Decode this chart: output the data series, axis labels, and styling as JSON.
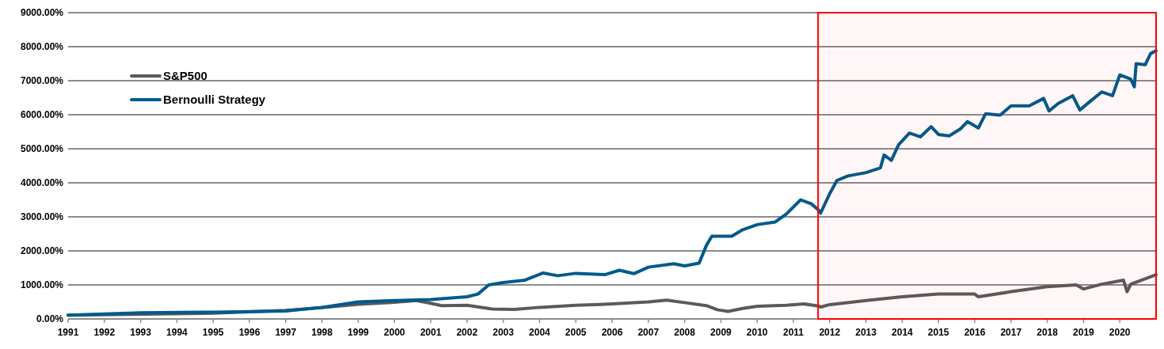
{
  "chart_data": {
    "type": "line",
    "xlim": [
      1991,
      2021
    ],
    "xticks": [
      1991,
      1992,
      1993,
      1994,
      1995,
      1996,
      1997,
      1998,
      1999,
      2000,
      2001,
      2002,
      2003,
      2004,
      2005,
      2006,
      2007,
      2008,
      2009,
      2010,
      2011,
      2012,
      2013,
      2014,
      2015,
      2016,
      2017,
      2018,
      2019,
      2020
    ],
    "ylim": [
      0,
      9000
    ],
    "yticks": [
      {
        "value": 0,
        "label": "0.00%"
      },
      {
        "value": 1000,
        "label": "1000.00%"
      },
      {
        "value": 2000,
        "label": "2000.00%"
      },
      {
        "value": 3000,
        "label": "3000.00%"
      },
      {
        "value": 4000,
        "label": "4000.00%"
      },
      {
        "value": 5000,
        "label": "5000.00%"
      },
      {
        "value": 6000,
        "label": "6000.00%"
      },
      {
        "value": 7000,
        "label": "7000.00%"
      },
      {
        "value": 8000,
        "label": "8000.00%"
      },
      {
        "value": 9000,
        "label": "9000.00%"
      }
    ],
    "grid": "y",
    "legend": "top left",
    "marker": "none",
    "line_style": "solid",
    "bands": [
      {
        "axis": "x",
        "from": 2011.68,
        "to": 2021,
        "color": "#ff0000"
      }
    ],
    "series": [
      {
        "name": "S&P500",
        "color": "#5a5a5a",
        "x": [
          1991,
          1995,
          1997,
          1998,
          1999,
          2000,
          2000.6,
          2001,
          2001.3,
          2002,
          2002.7,
          2003.3,
          2004,
          2005,
          2006,
          2007,
          2007.5,
          2008,
          2008.6,
          2008.9,
          2009.2,
          2009.6,
          2010,
          2010.8,
          2011.3,
          2011.7,
          2011.75,
          2012,
          2013,
          2014,
          2015,
          2016,
          2016.1,
          2017,
          2018,
          2018.8,
          2019,
          2019.5,
          2020.1,
          2020.2,
          2020.3,
          2021
        ],
        "values": [
          110,
          170,
          250,
          330,
          430,
          490,
          540,
          460,
          390,
          400,
          290,
          280,
          340,
          400,
          440,
          500,
          550,
          480,
          390,
          270,
          220,
          310,
          370,
          400,
          440,
          380,
          350,
          420,
          540,
          650,
          730,
          730,
          650,
          800,
          950,
          1000,
          880,
          1020,
          1140,
          800,
          1020,
          1300
        ]
      },
      {
        "name": "Bernoulli Strategy",
        "color": "#005a8c",
        "x": [
          1991,
          1993,
          1995,
          1997,
          1998,
          1999,
          2000,
          2001,
          2002,
          2002.3,
          2002.6,
          2003,
          2003.6,
          2004.1,
          2004.5,
          2005,
          2005.8,
          2006.2,
          2006.6,
          2007,
          2007.7,
          2008,
          2008.4,
          2008.6,
          2008.75,
          2009.3,
          2009.6,
          2010,
          2010.5,
          2010.8,
          2011.2,
          2011.5,
          2011.7,
          2011.75,
          2012,
          2012.2,
          2012.5,
          2013,
          2013.4,
          2013.5,
          2013.7,
          2013.9,
          2014.2,
          2014.5,
          2014.8,
          2015,
          2015.3,
          2015.6,
          2015.8,
          2016.1,
          2016.3,
          2016.7,
          2017,
          2017.5,
          2017.9,
          2018.05,
          2018.3,
          2018.7,
          2018.9,
          2019.2,
          2019.5,
          2019.8,
          2020,
          2020.3,
          2020.4,
          2020.45,
          2020.7,
          2020.85,
          2021
        ],
        "values": [
          110,
          180,
          200,
          230,
          340,
          500,
          540,
          570,
          650,
          730,
          1000,
          1070,
          1140,
          1350,
          1270,
          1340,
          1300,
          1430,
          1330,
          1520,
          1620,
          1560,
          1640,
          2160,
          2430,
          2430,
          2620,
          2770,
          2850,
          3080,
          3500,
          3380,
          3190,
          3110,
          3680,
          4070,
          4200,
          4300,
          4440,
          4820,
          4660,
          5120,
          5460,
          5350,
          5650,
          5420,
          5380,
          5580,
          5800,
          5610,
          6030,
          5990,
          6260,
          6260,
          6480,
          6110,
          6330,
          6560,
          6140,
          6410,
          6670,
          6560,
          7170,
          7050,
          6820,
          7500,
          7470,
          7800,
          7880
        ]
      }
    ]
  }
}
